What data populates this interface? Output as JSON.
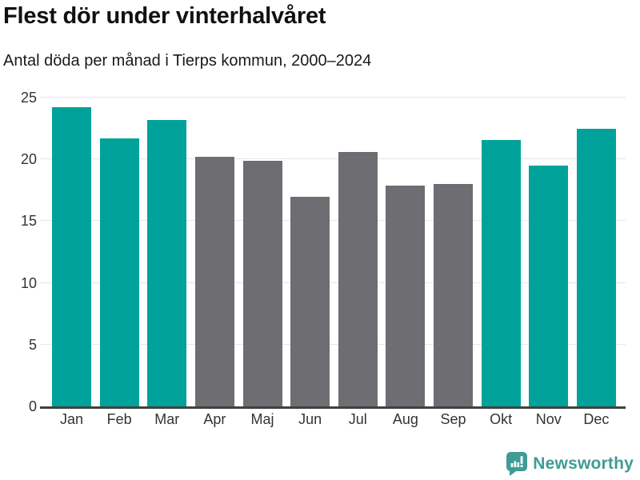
{
  "chart_data": {
    "type": "bar",
    "title": "Flest dör under vinterhalvåret",
    "subtitle": "Antal döda per månad i Tierps kommun, 2000–2024",
    "categories": [
      "Jan",
      "Feb",
      "Mar",
      "Apr",
      "Maj",
      "Jun",
      "Jul",
      "Aug",
      "Sep",
      "Okt",
      "Nov",
      "Dec"
    ],
    "values": [
      24.2,
      21.7,
      23.2,
      20.2,
      19.9,
      17.0,
      20.6,
      17.9,
      18.0,
      21.6,
      19.5,
      22.5
    ],
    "groups": [
      "winter",
      "winter",
      "winter",
      "summer",
      "summer",
      "summer",
      "summer",
      "summer",
      "summer",
      "winter",
      "winter",
      "winter"
    ],
    "colors": {
      "winter": "#00a29a",
      "summer": "#6e6d72"
    },
    "xlabel": "",
    "ylabel": "",
    "ylim": [
      0,
      25
    ],
    "yticks": [
      0,
      5,
      10,
      15,
      20,
      25
    ],
    "grid": true,
    "legend": "none",
    "gridline_color": "#e7e7e7",
    "axis_color": "#404040",
    "tick_label_color": "#333333"
  },
  "footer": {
    "brand": "Newsworthy",
    "brand_color": "#3f9c94",
    "logo_icon": "newsworthy-speech-bubble-bar-chart-icon"
  }
}
